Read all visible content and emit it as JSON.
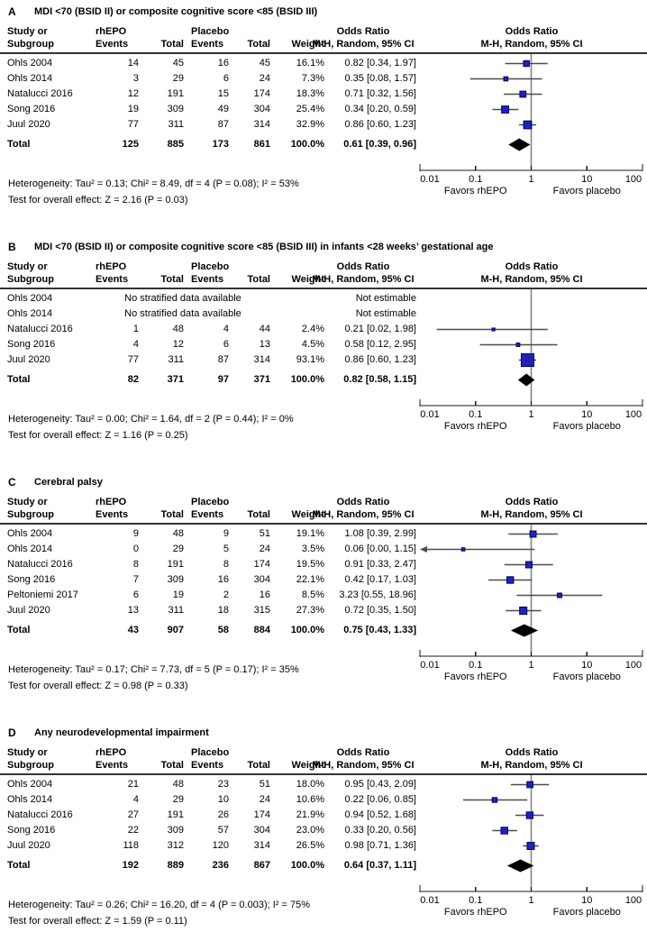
{
  "figure": {
    "columns": {
      "study_line1": "Study or",
      "study_line2": "Subgroup",
      "group1": "rhEPO",
      "group2": "Placebo",
      "events": "Events",
      "total": "Total",
      "weight": "Weight",
      "or_line1": "Odds Ratio",
      "or_line2": "M-H, Random, 95% CI"
    },
    "axis": {
      "ticks": [
        "0.01",
        "0.1",
        "1",
        "10",
        "100"
      ],
      "favors_left": "Favors rhEPO",
      "favors_right": "Favors placebo"
    },
    "colors": {
      "marker_fill": "#2222bb",
      "marker_border": "#000066",
      "ci_line": "#4d4d4d",
      "null_line": "#8c8c8c",
      "axis_line": "#1a1a1a",
      "diamond": "#000000",
      "header_rule": "#333333",
      "text": "#000000",
      "background": "#ffffff"
    }
  },
  "chart_data": [
    {
      "type": "scatter",
      "subtype": "forest-plot",
      "panel_label": "A",
      "title": "MDI <70 (BSID II) or composite cognitive score <85 (BSID III)",
      "xscale": "log",
      "xlim": [
        0.01,
        100
      ],
      "xticks": [
        "0.01",
        "0.1",
        "1",
        "10",
        "100"
      ],
      "studies": [
        {
          "study": "Ohls 2004",
          "rhepo_events": 14,
          "rhepo_total": 45,
          "placebo_events": 16,
          "placebo_total": 45,
          "weight": "16.1%",
          "or": 0.82,
          "ci_low": 0.34,
          "ci_high": 1.97,
          "or_label": "0.82 [0.34, 1.97]"
        },
        {
          "study": "Ohls 2014",
          "rhepo_events": 3,
          "rhepo_total": 29,
          "placebo_events": 6,
          "placebo_total": 24,
          "weight": "7.3%",
          "or": 0.35,
          "ci_low": 0.08,
          "ci_high": 1.57,
          "or_label": "0.35 [0.08, 1.57]"
        },
        {
          "study": "Natalucci 2016",
          "rhepo_events": 12,
          "rhepo_total": 191,
          "placebo_events": 15,
          "placebo_total": 174,
          "weight": "18.3%",
          "or": 0.71,
          "ci_low": 0.32,
          "ci_high": 1.56,
          "or_label": "0.71 [0.32, 1.56]"
        },
        {
          "study": "Song 2016",
          "rhepo_events": 19,
          "rhepo_total": 309,
          "placebo_events": 49,
          "placebo_total": 304,
          "weight": "25.4%",
          "or": 0.34,
          "ci_low": 0.2,
          "ci_high": 0.59,
          "or_label": "0.34 [0.20, 0.59]"
        },
        {
          "study": "Juul 2020",
          "rhepo_events": 77,
          "rhepo_total": 311,
          "placebo_events": 87,
          "placebo_total": 314,
          "weight": "32.9%",
          "or": 0.86,
          "ci_low": 0.6,
          "ci_high": 1.23,
          "or_label": "0.86 [0.60, 1.23]"
        }
      ],
      "total": {
        "study": "Total",
        "rhepo_events": 125,
        "rhepo_total": 885,
        "placebo_events": 173,
        "placebo_total": 861,
        "weight": "100.0%",
        "or": 0.61,
        "ci_low": 0.39,
        "ci_high": 0.96,
        "or_label": "0.61 [0.39, 0.96]"
      },
      "heterogeneity": "Heterogeneity: Tau² = 0.13; Chi² = 8.49, df = 4 (P = 0.08); I² = 53%",
      "overall_effect": "Test for overall effect: Z = 2.16 (P = 0.03)"
    },
    {
      "type": "scatter",
      "subtype": "forest-plot",
      "panel_label": "B",
      "title": "MDI <70 (BSID II) or composite cognitive score <85 (BSID III) in infants <28 weeks’ gestational age",
      "xscale": "log",
      "xlim": [
        0.01,
        100
      ],
      "xticks": [
        "0.01",
        "0.1",
        "1",
        "10",
        "100"
      ],
      "studies": [
        {
          "study": "Ohls 2004",
          "note": "No stratified data available",
          "or_label": "Not estimable"
        },
        {
          "study": "Ohls 2014",
          "note": "No stratified data available",
          "or_label": "Not estimable"
        },
        {
          "study": "Natalucci 2016",
          "rhepo_events": 1,
          "rhepo_total": 48,
          "placebo_events": 4,
          "placebo_total": 44,
          "weight": "2.4%",
          "or": 0.21,
          "ci_low": 0.02,
          "ci_high": 1.98,
          "or_label": "0.21 [0.02, 1.98]"
        },
        {
          "study": "Song 2016",
          "rhepo_events": 4,
          "rhepo_total": 12,
          "placebo_events": 6,
          "placebo_total": 13,
          "weight": "4.5%",
          "or": 0.58,
          "ci_low": 0.12,
          "ci_high": 2.95,
          "or_label": "0.58 [0.12, 2.95]"
        },
        {
          "study": "Juul 2020",
          "rhepo_events": 77,
          "rhepo_total": 311,
          "placebo_events": 87,
          "placebo_total": 314,
          "weight": "93.1%",
          "or": 0.86,
          "ci_low": 0.6,
          "ci_high": 1.23,
          "or_label": "0.86 [0.60, 1.23]"
        }
      ],
      "total": {
        "study": "Total",
        "rhepo_events": 82,
        "rhepo_total": 371,
        "placebo_events": 97,
        "placebo_total": 371,
        "weight": "100.0%",
        "or": 0.82,
        "ci_low": 0.58,
        "ci_high": 1.15,
        "or_label": "0.82 [0.58, 1.15]"
      },
      "heterogeneity": "Heterogeneity: Tau² = 0.00; Chi² = 1.64, df = 2 (P = 0.44); I² = 0%",
      "overall_effect": "Test for overall effect: Z = 1.16 (P = 0.25)"
    },
    {
      "type": "scatter",
      "subtype": "forest-plot",
      "panel_label": "C",
      "title": "Cerebral palsy",
      "xscale": "log",
      "xlim": [
        0.01,
        100
      ],
      "xticks": [
        "0.01",
        "0.1",
        "1",
        "10",
        "100"
      ],
      "studies": [
        {
          "study": "Ohls 2004",
          "rhepo_events": 9,
          "rhepo_total": 48,
          "placebo_events": 9,
          "placebo_total": 51,
          "weight": "19.1%",
          "or": 1.08,
          "ci_low": 0.39,
          "ci_high": 2.99,
          "or_label": "1.08 [0.39, 2.99]"
        },
        {
          "study": "Ohls 2014",
          "rhepo_events": 0,
          "rhepo_total": 29,
          "placebo_events": 5,
          "placebo_total": 24,
          "weight": "3.5%",
          "or": 0.06,
          "ci_low": 0.0,
          "ci_high": 1.15,
          "or_label": "0.06 [0.00, 1.15]"
        },
        {
          "study": "Natalucci 2016",
          "rhepo_events": 8,
          "rhepo_total": 191,
          "placebo_events": 8,
          "placebo_total": 174,
          "weight": "19.5%",
          "or": 0.91,
          "ci_low": 0.33,
          "ci_high": 2.47,
          "or_label": "0.91 [0.33, 2.47]"
        },
        {
          "study": "Song 2016",
          "rhepo_events": 7,
          "rhepo_total": 309,
          "placebo_events": 16,
          "placebo_total": 304,
          "weight": "22.1%",
          "or": 0.42,
          "ci_low": 0.17,
          "ci_high": 1.03,
          "or_label": "0.42 [0.17, 1.03]"
        },
        {
          "study": "Peltoniemi 2017",
          "rhepo_events": 6,
          "rhepo_total": 19,
          "placebo_events": 2,
          "placebo_total": 16,
          "weight": "8.5%",
          "or": 3.23,
          "ci_low": 0.55,
          "ci_high": 18.96,
          "or_label": "3.23 [0.55, 18.96]"
        },
        {
          "study": "Juul 2020",
          "rhepo_events": 13,
          "rhepo_total": 311,
          "placebo_events": 18,
          "placebo_total": 315,
          "weight": "27.3%",
          "or": 0.72,
          "ci_low": 0.35,
          "ci_high": 1.5,
          "or_label": "0.72 [0.35, 1.50]"
        }
      ],
      "total": {
        "study": "Total",
        "rhepo_events": 43,
        "rhepo_total": 907,
        "placebo_events": 58,
        "placebo_total": 884,
        "weight": "100.0%",
        "or": 0.75,
        "ci_low": 0.43,
        "ci_high": 1.33,
        "or_label": "0.75 [0.43, 1.33]"
      },
      "heterogeneity": "Heterogeneity: Tau² = 0.17; Chi² = 7.73, df = 5 (P = 0.17); I² = 35%",
      "overall_effect": "Test for overall effect: Z = 0.98 (P = 0.33)"
    },
    {
      "type": "scatter",
      "subtype": "forest-plot",
      "panel_label": "D",
      "title": "Any neurodevelopmental impairment",
      "xscale": "log",
      "xlim": [
        0.01,
        100
      ],
      "xticks": [
        "0.01",
        "0.1",
        "1",
        "10",
        "100"
      ],
      "studies": [
        {
          "study": "Ohls 2004",
          "rhepo_events": 21,
          "rhepo_total": 48,
          "placebo_events": 23,
          "placebo_total": 51,
          "weight": "18.0%",
          "or": 0.95,
          "ci_low": 0.43,
          "ci_high": 2.09,
          "or_label": "0.95 [0.43, 2.09]"
        },
        {
          "study": "Ohls 2014",
          "rhepo_events": 4,
          "rhepo_total": 29,
          "placebo_events": 10,
          "placebo_total": 24,
          "weight": "10.6%",
          "or": 0.22,
          "ci_low": 0.06,
          "ci_high": 0.85,
          "or_label": "0.22 [0.06, 0.85]"
        },
        {
          "study": "Natalucci 2016",
          "rhepo_events": 27,
          "rhepo_total": 191,
          "placebo_events": 26,
          "placebo_total": 174,
          "weight": "21.9%",
          "or": 0.94,
          "ci_low": 0.52,
          "ci_high": 1.68,
          "or_label": "0.94 [0.52, 1.68]"
        },
        {
          "study": "Song 2016",
          "rhepo_events": 22,
          "rhepo_total": 309,
          "placebo_events": 57,
          "placebo_total": 304,
          "weight": "23.0%",
          "or": 0.33,
          "ci_low": 0.2,
          "ci_high": 0.56,
          "or_label": "0.33 [0.20, 0.56]"
        },
        {
          "study": "Juul 2020",
          "rhepo_events": 118,
          "rhepo_total": 312,
          "placebo_events": 120,
          "placebo_total": 314,
          "weight": "26.5%",
          "or": 0.98,
          "ci_low": 0.71,
          "ci_high": 1.36,
          "or_label": "0.98 [0.71, 1.36]"
        }
      ],
      "total": {
        "study": "Total",
        "rhepo_events": 192,
        "rhepo_total": 889,
        "placebo_events": 236,
        "placebo_total": 867,
        "weight": "100.0%",
        "or": 0.64,
        "ci_low": 0.37,
        "ci_high": 1.11,
        "or_label": "0.64 [0.37, 1.11]"
      },
      "heterogeneity": "Heterogeneity: Tau² = 0.26; Chi² = 16.20, df = 4 (P = 0.003); I² = 75%",
      "overall_effect": "Test for overall effect: Z = 1.59 (P = 0.11)"
    }
  ]
}
